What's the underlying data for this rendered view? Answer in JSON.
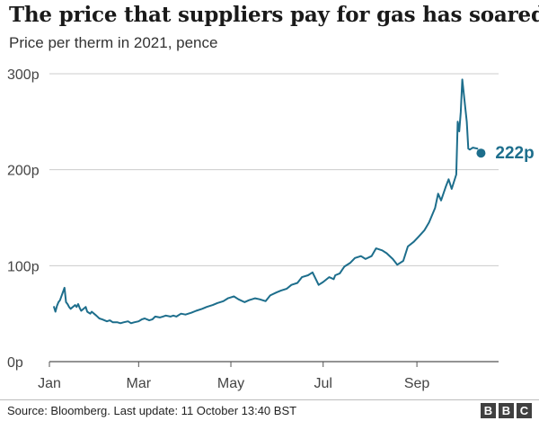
{
  "chart_data": {
    "type": "line",
    "title": "The price that suppliers pay for gas has soared",
    "subtitle": "Price per therm in 2021, pence",
    "source": "Source: Bloomberg. Last update: 11 October 13:40 BST",
    "xlabel": "",
    "ylabel": "",
    "ylim": [
      0,
      300
    ],
    "yticks": [
      0,
      100,
      200,
      300
    ],
    "ytick_labels": [
      "0p",
      "100p",
      "200p",
      "300p"
    ],
    "xticks": [
      "2021-01-01",
      "2021-03-01",
      "2021-05-01",
      "2021-07-01",
      "2021-09-01"
    ],
    "xtick_labels": [
      "Jan",
      "Mar",
      "May",
      "Jul",
      "Sep"
    ],
    "grid": true,
    "line_color": "#1d6e8c",
    "end_label": "222p",
    "series": [
      {
        "x": [
          "2021-01-04",
          "2021-01-05",
          "2021-01-06",
          "2021-01-07",
          "2021-01-08",
          "2021-01-11",
          "2021-01-12",
          "2021-01-13",
          "2021-01-14",
          "2021-01-15",
          "2021-01-18",
          "2021-01-19",
          "2021-01-20",
          "2021-01-21",
          "2021-01-22",
          "2021-01-25",
          "2021-01-26",
          "2021-01-27",
          "2021-01-28",
          "2021-01-29",
          "2021-02-01",
          "2021-02-03",
          "2021-02-05",
          "2021-02-08",
          "2021-02-10",
          "2021-02-12",
          "2021-02-15",
          "2021-02-17",
          "2021-02-19",
          "2021-02-22",
          "2021-02-24",
          "2021-02-26",
          "2021-03-01",
          "2021-03-03",
          "2021-03-05",
          "2021-03-08",
          "2021-03-10",
          "2021-03-12",
          "2021-03-15",
          "2021-03-17",
          "2021-03-19",
          "2021-03-22",
          "2021-03-24",
          "2021-03-26",
          "2021-03-29",
          "2021-04-01",
          "2021-04-05",
          "2021-04-08",
          "2021-04-12",
          "2021-04-15",
          "2021-04-19",
          "2021-04-22",
          "2021-04-26",
          "2021-04-29",
          "2021-05-03",
          "2021-05-06",
          "2021-05-10",
          "2021-05-13",
          "2021-05-17",
          "2021-05-20",
          "2021-05-24",
          "2021-05-27",
          "2021-05-31",
          "2021-06-03",
          "2021-06-07",
          "2021-06-10",
          "2021-06-14",
          "2021-06-17",
          "2021-06-21",
          "2021-06-24",
          "2021-06-28",
          "2021-07-01",
          "2021-07-05",
          "2021-07-08",
          "2021-07-09",
          "2021-07-12",
          "2021-07-15",
          "2021-07-19",
          "2021-07-22",
          "2021-07-26",
          "2021-07-29",
          "2021-08-02",
          "2021-08-05",
          "2021-08-09",
          "2021-08-12",
          "2021-08-16",
          "2021-08-19",
          "2021-08-23",
          "2021-08-24",
          "2021-08-26",
          "2021-08-30",
          "2021-09-02",
          "2021-09-06",
          "2021-09-09",
          "2021-09-13",
          "2021-09-15",
          "2021-09-17",
          "2021-09-20",
          "2021-09-22",
          "2021-09-24",
          "2021-09-27",
          "2021-09-28",
          "2021-09-29",
          "2021-09-30",
          "2021-10-01",
          "2021-10-04",
          "2021-10-05",
          "2021-10-06",
          "2021-10-07",
          "2021-10-08",
          "2021-10-11"
        ],
        "values": [
          57,
          52,
          58,
          62,
          64,
          77,
          62,
          60,
          57,
          55,
          59,
          57,
          60,
          56,
          53,
          57,
          52,
          51,
          50,
          52,
          48,
          45,
          44,
          42,
          43,
          41,
          41,
          40,
          41,
          42,
          40,
          41,
          42,
          44,
          45,
          43,
          44,
          47,
          46,
          47,
          48,
          47,
          48,
          47,
          50,
          49,
          51,
          53,
          55,
          57,
          59,
          61,
          63,
          66,
          68,
          65,
          62,
          64,
          66,
          65,
          63,
          69,
          72,
          74,
          76,
          80,
          82,
          88,
          90,
          93,
          80,
          83,
          88,
          86,
          90,
          92,
          99,
          103,
          108,
          110,
          107,
          110,
          118,
          116,
          113,
          107,
          101,
          105,
          110,
          120,
          125,
          130,
          137,
          145,
          160,
          175,
          168,
          182,
          190,
          180,
          195,
          250,
          240,
          260,
          294,
          250,
          222,
          221,
          222,
          223,
          222
        ]
      }
    ]
  }
}
